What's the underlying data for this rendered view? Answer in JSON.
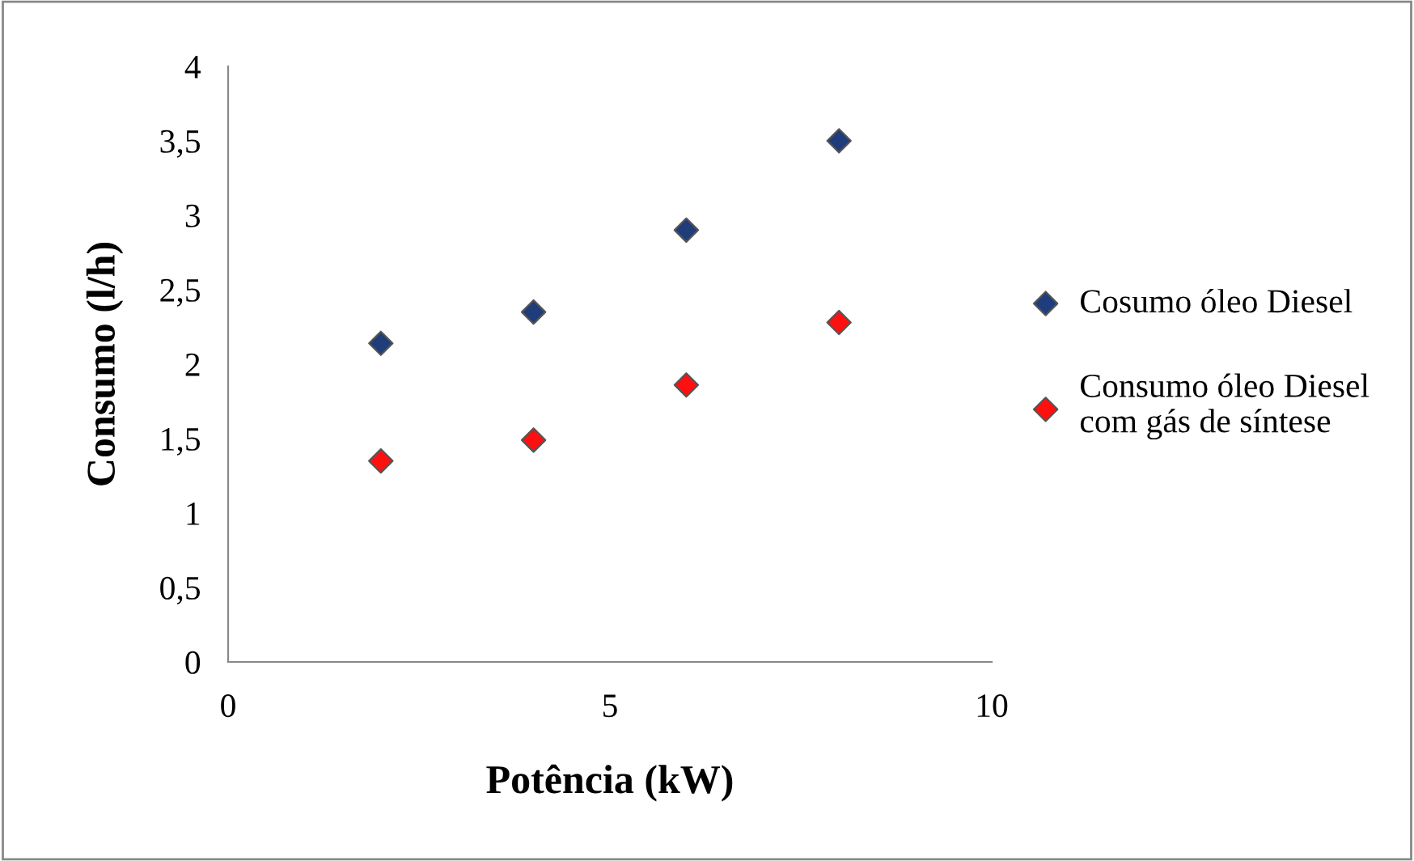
{
  "chart_data": {
    "type": "scatter",
    "xlabel": "Potência (kW)",
    "ylabel": "Consumo (l/h)",
    "x": [
      2,
      4,
      6,
      8
    ],
    "series": [
      {
        "name": "Cosumo óleo Diesel",
        "color": "#1f3d7a",
        "values": [
          2.14,
          2.35,
          2.9,
          3.5
        ]
      },
      {
        "name": "Consumo óleo Diesel\ncom gás de síntese",
        "color": "#ff1010",
        "values": [
          1.35,
          1.49,
          1.86,
          2.28
        ]
      }
    ],
    "xlim": [
      0,
      10
    ],
    "xticks": [
      0,
      5,
      10
    ],
    "ylim": [
      0,
      4
    ],
    "yticks": [
      0,
      {
        "value": 0.5,
        "label": "0,5"
      },
      1,
      {
        "value": 1.5,
        "label": "1,5"
      },
      2,
      {
        "value": 2.5,
        "label": "2,5"
      },
      3,
      {
        "value": 3.5,
        "label": "3,5"
      },
      4
    ],
    "grid": false,
    "legend": "right",
    "marker": "diamond"
  }
}
